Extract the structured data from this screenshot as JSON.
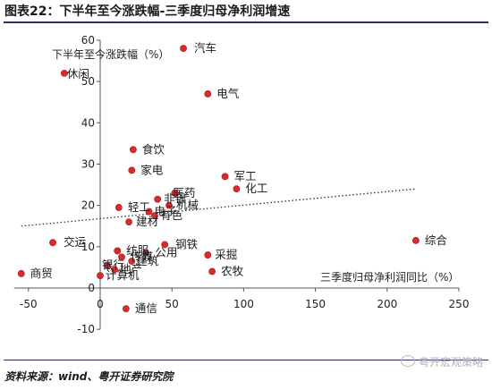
{
  "figure_title": "图表22：下半年至今涨跌幅-三季度归母净利润增速",
  "source": "资料来源：wind、粤开证券研究院",
  "watermark": "粤开宏观策略",
  "colors": {
    "point": "#d92b2b",
    "trend": "#333333",
    "axis": "#555555",
    "rule": "#2b2b6e"
  },
  "chart_data": {
    "type": "scatter",
    "xlabel": "三季度归母净利润同比（%）",
    "ylabel": "下半年至今涨跌幅（%）",
    "xlim": [
      -60,
      250
    ],
    "ylim": [
      -10,
      60
    ],
    "xticks": [
      -50,
      0,
      50,
      100,
      150,
      200,
      250
    ],
    "yticks": [
      -10,
      0,
      10,
      20,
      30,
      40,
      50,
      60
    ],
    "grid": false,
    "trendline": {
      "style": "dotted",
      "from": [
        -55,
        15
      ],
      "to": [
        220,
        24
      ]
    },
    "points": [
      {
        "label": "休闲",
        "x": -25,
        "y": 52
      },
      {
        "label": "汽车",
        "x": 58,
        "y": 58
      },
      {
        "label": "电气",
        "x": 75,
        "y": 47
      },
      {
        "label": "食饮",
        "x": 23,
        "y": 33.5
      },
      {
        "label": "家电",
        "x": 22,
        "y": 28.5
      },
      {
        "label": "军工",
        "x": 87,
        "y": 27
      },
      {
        "label": "化工",
        "x": 95,
        "y": 24
      },
      {
        "label": "医药",
        "x": 52,
        "y": 23
      },
      {
        "label": "非银",
        "x": 40,
        "y": 21.5
      },
      {
        "label": "机械",
        "x": 48,
        "y": 20
      },
      {
        "label": "轻工",
        "x": 13,
        "y": 19.5
      },
      {
        "label": "电子",
        "x": 34,
        "y": 18.5
      },
      {
        "label": "有色",
        "x": 38,
        "y": 17.5
      },
      {
        "label": "建材",
        "x": 20,
        "y": 16
      },
      {
        "label": "交运",
        "x": -33,
        "y": 11
      },
      {
        "label": "纺服",
        "x": 12,
        "y": 9
      },
      {
        "label": "钢铁",
        "x": 45,
        "y": 10.5
      },
      {
        "label": "公用",
        "x": 32,
        "y": 8.5
      },
      {
        "label": "传媒",
        "x": 15,
        "y": 7.5
      },
      {
        "label": "建筑",
        "x": 22,
        "y": 6.5
      },
      {
        "label": "采掘",
        "x": 75,
        "y": 8
      },
      {
        "label": "银行",
        "x": 5,
        "y": 5.5
      },
      {
        "label": "地产",
        "x": 10,
        "y": 4.5
      },
      {
        "label": "农牧",
        "x": 78,
        "y": 4
      },
      {
        "label": "计算机",
        "x": 0,
        "y": 3
      },
      {
        "label": "商贸",
        "x": -55,
        "y": 3.5
      },
      {
        "label": "综合",
        "x": 220,
        "y": 11.5
      },
      {
        "label": "通信",
        "x": 18,
        "y": -5
      }
    ]
  }
}
